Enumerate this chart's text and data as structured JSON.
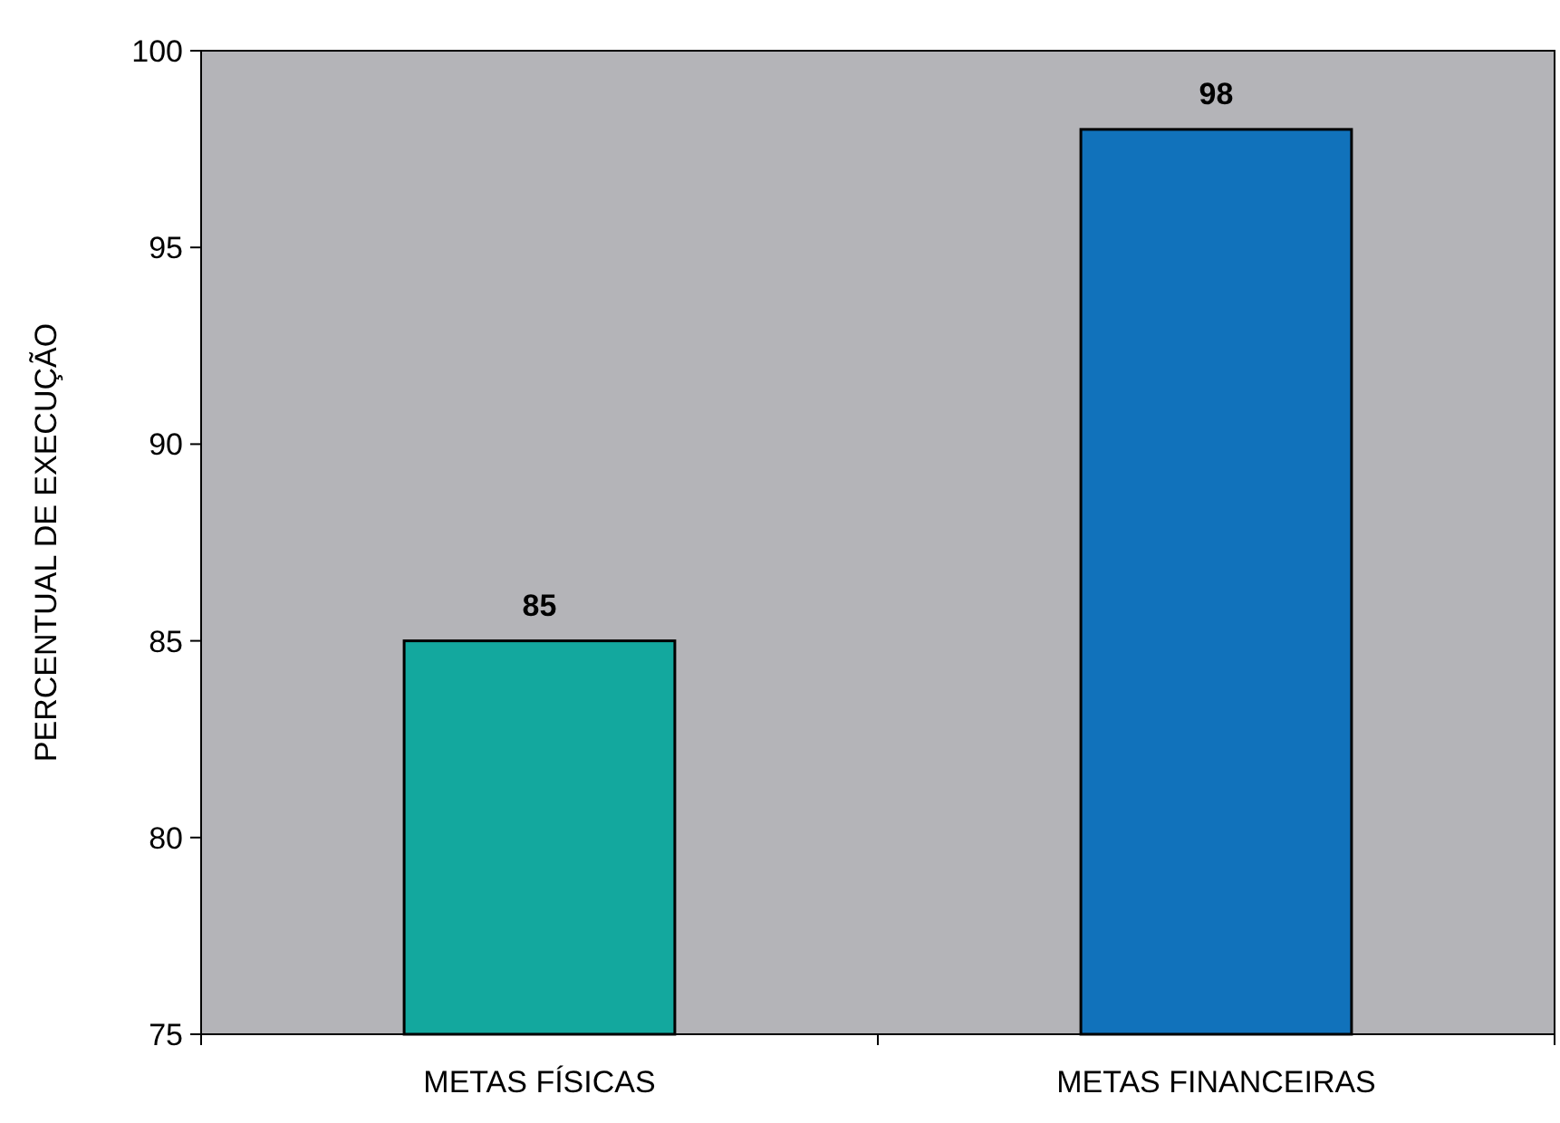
{
  "chart_data": {
    "type": "bar",
    "ylabel": "PERCENTUAL DE EXECUÇÃO",
    "categories": [
      "METAS FÍSICAS",
      "METAS FINANCEIRAS"
    ],
    "values": [
      85,
      98
    ],
    "colors": [
      "#13a89e",
      "#1172bb"
    ],
    "ylim": [
      75,
      100
    ],
    "yticks": [
      75,
      80,
      85,
      90,
      95,
      100
    ],
    "data_labels": true
  }
}
